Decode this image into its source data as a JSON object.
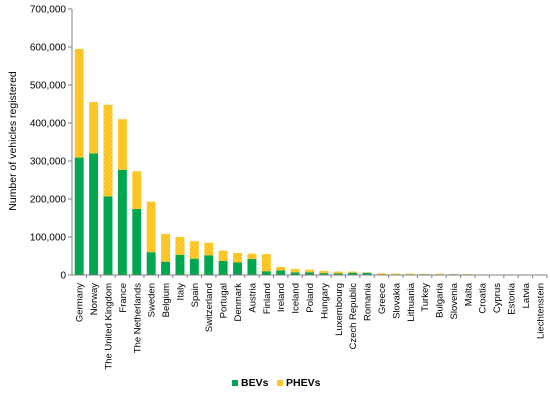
{
  "chart_data": {
    "type": "bar",
    "stacked": true,
    "title": "",
    "xlabel": "",
    "ylabel": "Number of vehicles registered",
    "ylim": [
      0,
      700000
    ],
    "yticks": [
      0,
      100000,
      200000,
      300000,
      400000,
      500000,
      600000,
      700000
    ],
    "ytick_labels": [
      "0",
      "100,000",
      "200,000",
      "300,000",
      "400,000",
      "500,000",
      "600,000",
      "700,000"
    ],
    "grid": false,
    "legend_position": "bottom",
    "categories": [
      "Germany",
      "Norway",
      "The United Kingdom",
      "France",
      "The Netherlands",
      "Sweden",
      "Belgium",
      "Italy",
      "Spain",
      "Switzerland",
      "Portugal",
      "Denmark",
      "Austria",
      "Finland",
      "Ireland",
      "Iceland",
      "Poland",
      "Hungary",
      "Luxembourg",
      "Czech Republic",
      "Romania",
      "Greece",
      "Slovakia",
      "Lithuania",
      "Turkey",
      "Bulgaria",
      "Slovenia",
      "Malta",
      "Croatia",
      "Cyprus",
      "Estonia",
      "Latvia",
      "Liechtenstein"
    ],
    "series": [
      {
        "name": "BEVs",
        "color": "#00a650",
        "values": [
          309000,
          320000,
          207000,
          277000,
          174000,
          60000,
          35000,
          53000,
          43000,
          52000,
          37000,
          33000,
          42000,
          10000,
          12000,
          7000,
          7000,
          5000,
          4000,
          6000,
          6000,
          1500,
          1500,
          1500,
          2000,
          1000,
          2000,
          800,
          800,
          500,
          500,
          500,
          300
        ]
      },
      {
        "name": "PHEVs",
        "color": "#fec31a",
        "values": [
          286000,
          135000,
          241000,
          133000,
          99000,
          133000,
          73000,
          47000,
          46000,
          33000,
          27000,
          25000,
          14000,
          45000,
          9000,
          9000,
          7000,
          6000,
          5000,
          3000,
          1000,
          3000,
          2000,
          2000,
          1000,
          2000,
          500,
          1500,
          800,
          800,
          700,
          600,
          600
        ]
      }
    ]
  }
}
